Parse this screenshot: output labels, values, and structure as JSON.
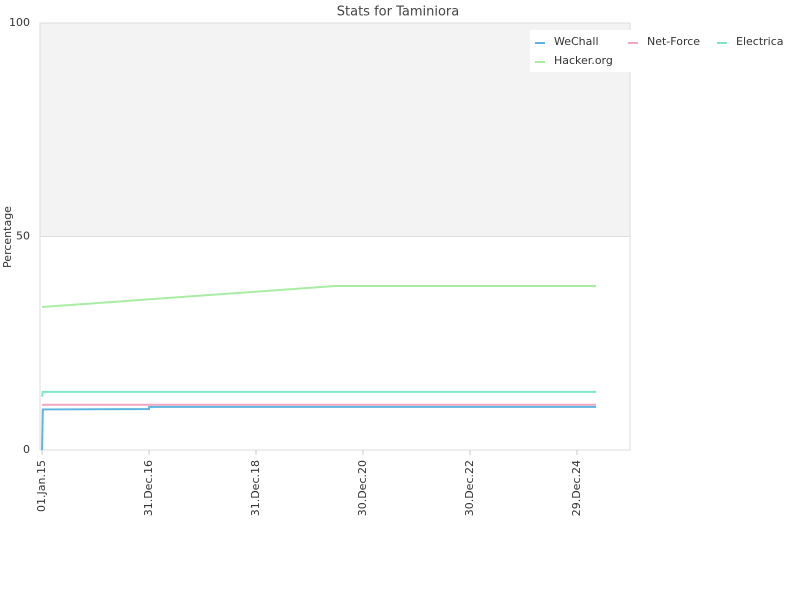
{
  "chart_data": {
    "type": "line",
    "title": "Stats for Taminiora",
    "y_label": "Percentage",
    "xlim": [
      "2014-12-18",
      "2025-12-26"
    ],
    "xticks": [
      "2015-01-01",
      "2016-12-31",
      "2018-12-31",
      "2020-12-30",
      "2022-12-30",
      "2024-12-29"
    ],
    "xtick_labels": [
      "01.Jan.15",
      "31.Dec.16",
      "31.Dec.18",
      "30.Dec.20",
      "30.Dec.22",
      "29.Dec.24"
    ],
    "ylim": [
      0,
      100
    ],
    "yticks": [
      0,
      50,
      100
    ],
    "grid": true,
    "series": [
      {
        "name": "WeChall",
        "color": "#5db4e0",
        "x": [
          "2015-01-01",
          "2015-01-06",
          "2016-12-31",
          "2017-01-01",
          "2025-05-08"
        ],
        "values": [
          0,
          9.5,
          9.6,
          10.1,
          10.1
        ]
      },
      {
        "name": "Net-Force",
        "color": "#f2a7c3",
        "x": [
          "2015-01-01",
          "2025-05-08"
        ],
        "values": [
          10.6,
          10.6
        ]
      },
      {
        "name": "Electrica",
        "color": "#7fe6cc",
        "x": [
          "2015-01-01",
          "2015-01-06",
          "2025-05-08"
        ],
        "values": [
          12.5,
          13.6,
          13.6
        ]
      },
      {
        "name": "Hacker.org",
        "color": "#a8eda2",
        "x": [
          "2015-01-01",
          "2020-06-22",
          "2025-05-08"
        ],
        "values": [
          33.5,
          38.4,
          38.4
        ]
      }
    ]
  }
}
